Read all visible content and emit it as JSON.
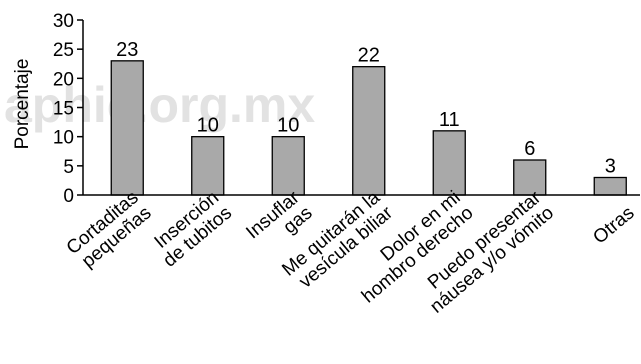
{
  "chart_data": {
    "type": "bar",
    "categories": [
      [
        "Cortaditas",
        "pequeñas"
      ],
      [
        "Inserción",
        "de tubitos"
      ],
      [
        "Insuflar",
        "gas"
      ],
      [
        "Me quitarán la",
        "vesícula biliar"
      ],
      [
        "Dolor en mi",
        "hombro derecho"
      ],
      [
        "Puedo presentar",
        "náusea y/o vómito"
      ],
      [
        "Otras"
      ]
    ],
    "values": [
      23,
      10,
      10,
      22,
      11,
      6,
      3
    ],
    "data_labels": [
      "23",
      "10",
      "10",
      "22",
      "11",
      "6",
      "3"
    ],
    "ylabel": "Porcentaje",
    "ylim": [
      0,
      30
    ],
    "yticks": [
      0,
      5,
      10,
      15,
      20,
      25,
      30
    ],
    "ytick_labels": [
      "0",
      "5",
      "10",
      "15",
      "20",
      "25",
      "30"
    ],
    "grid": false,
    "legend": "none",
    "bar_color": "#a9a9a9",
    "watermark": "aphic.org.mx"
  }
}
